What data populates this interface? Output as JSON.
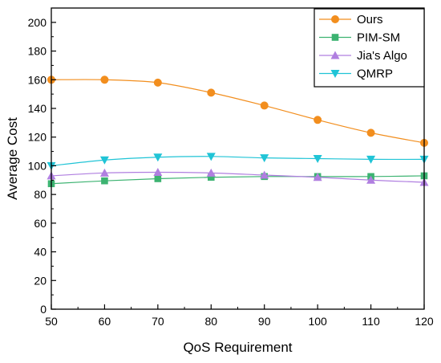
{
  "chart_data": {
    "type": "line",
    "xlabel": "QoS Requirement",
    "ylabel": "Average Cost",
    "xlim": [
      50,
      120
    ],
    "ylim": [
      0,
      210
    ],
    "xticks": [
      50,
      60,
      70,
      80,
      90,
      100,
      110,
      120
    ],
    "yticks": [
      0,
      20,
      40,
      60,
      80,
      100,
      120,
      140,
      160,
      180,
      200
    ],
    "legend_position": "top-right",
    "grid": false,
    "x": [
      50,
      60,
      70,
      80,
      90,
      100,
      110,
      120
    ],
    "series": [
      {
        "name": "Ours",
        "color": "#F28E1E",
        "marker": "circle",
        "values": [
          160,
          160,
          158,
          151,
          142,
          132,
          123,
          116
        ]
      },
      {
        "name": "PIM-SM",
        "color": "#3CB371",
        "marker": "square",
        "values": [
          87.5,
          89.5,
          91,
          92,
          92.5,
          92.5,
          92.5,
          93
        ]
      },
      {
        "name": "Jia's Algo",
        "color": "#B07FE0",
        "marker": "triangle-up",
        "values": [
          93,
          95,
          95.5,
          95,
          93.5,
          92,
          90,
          88.5
        ]
      },
      {
        "name": "QMRP",
        "color": "#20C4D6",
        "marker": "triangle-down",
        "values": [
          100,
          104,
          106,
          106.5,
          105.5,
          105,
          104.5,
          104.5
        ]
      }
    ]
  }
}
